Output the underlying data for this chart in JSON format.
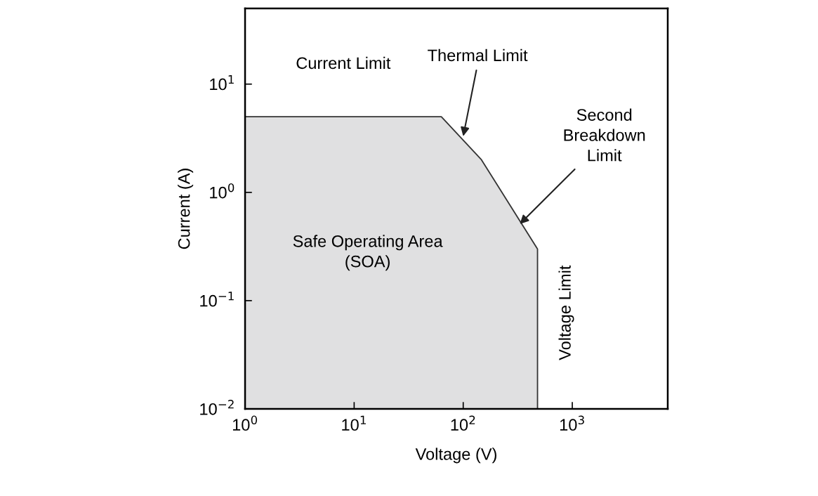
{
  "chart_data": {
    "type": "area",
    "xlabel": "Voltage (V)",
    "ylabel": "Current (A)",
    "log": "xy",
    "grid": false,
    "x": [
      1,
      63,
      147,
      480,
      480
    ],
    "series": [
      {
        "color": "#e0e0e1",
        "values": [
          5,
          5,
          2,
          0.3,
          0.01
        ]
      }
    ],
    "xlim": [
      1,
      7500
    ],
    "ylim": [
      0.01,
      50
    ],
    "xticks": [
      {
        "value": 1,
        "label": "10$^{0}$"
      },
      {
        "value": 10,
        "label": "10$^{1}$"
      },
      {
        "value": 100,
        "label": "10$^{2}$"
      },
      {
        "value": 1000,
        "label": "10$^{3}$"
      }
    ],
    "yticks": [
      {
        "value": 0.01,
        "label": "10$^{−2}$"
      },
      {
        "value": 0.1,
        "label": "10$^{−1}$"
      },
      {
        "value": 1,
        "label": "10$^{0}$"
      },
      {
        "value": 10,
        "label": "10$^{1}$"
      }
    ],
    "annotations": [
      "Current Limit",
      {
        "text": "Thermal Limit",
        "x": 100,
        "y": 3.3
      },
      {
        "text": "Second\nBreakdown\nLimit",
        "x": 330,
        "y": 0.51
      },
      "Safe Operating Area\n(SOA)",
      "Voltage Limit"
    ]
  }
}
